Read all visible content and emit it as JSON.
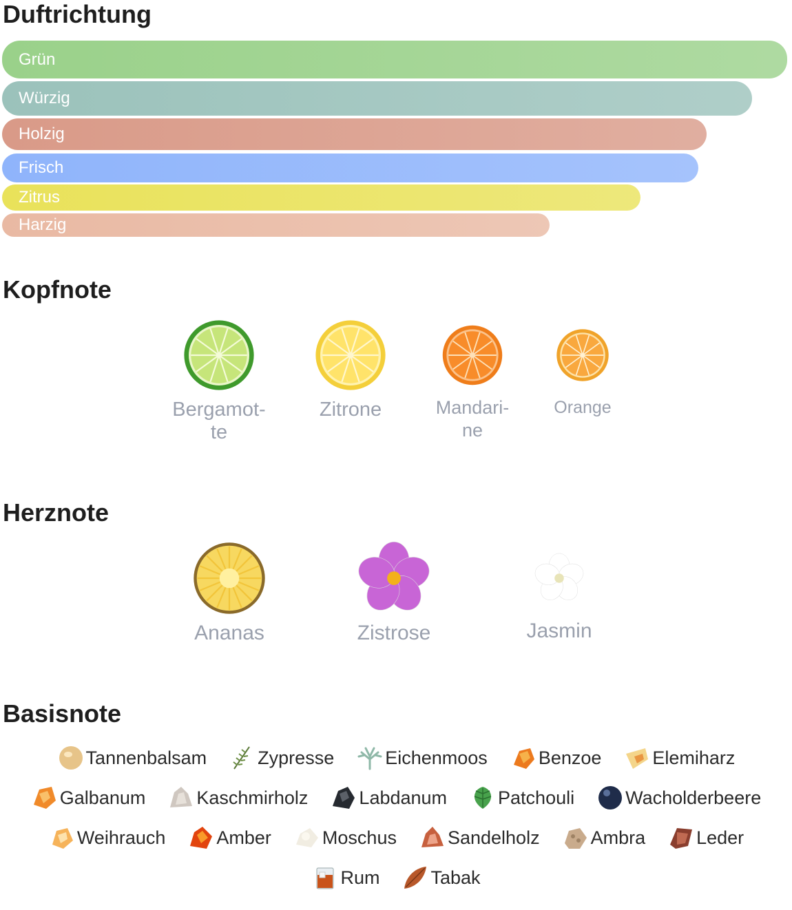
{
  "sections": {
    "duftrichtung": "Duftrichtung",
    "kopfnote": "Kopfnote",
    "herznote": "Herznote",
    "basisnote": "Basisnote"
  },
  "accords": [
    {
      "label": "Grün",
      "strength": 1.0,
      "color": "#9ad18a"
    },
    {
      "label": "Würzig",
      "strength": 0.955,
      "color": "#9bc2bb"
    },
    {
      "label": "Holzig",
      "strength": 0.897,
      "color": "#d99a88"
    },
    {
      "label": "Frisch",
      "strength": 0.887,
      "color": "#8fb4fb"
    },
    {
      "label": "Zitrus",
      "strength": 0.813,
      "color": "#e9e25a"
    },
    {
      "label": "Harzig",
      "strength": 0.697,
      "color": "#e9b9a3"
    }
  ],
  "kopfnote": [
    {
      "label": "Bergamot-\nte",
      "icon": "bergamot-icon"
    },
    {
      "label": "Zitrone",
      "icon": "lemon-icon"
    },
    {
      "label": "Mandari-\nne",
      "icon": "mandarin-icon"
    },
    {
      "label": "Orange",
      "icon": "orange-icon"
    }
  ],
  "herznote": [
    {
      "label": "Ananas",
      "icon": "pineapple-icon"
    },
    {
      "label": "Zistrose",
      "icon": "rockrose-icon"
    },
    {
      "label": "Jasmin",
      "icon": "jasmine-icon"
    }
  ],
  "basisnote": [
    [
      {
        "label": "Tannenbalsam",
        "icon": "fir-balsam-icon"
      },
      {
        "label": "Zypresse",
        "icon": "cypress-icon"
      },
      {
        "label": "Eichenmoos",
        "icon": "oakmoss-icon"
      },
      {
        "label": "Benzoe",
        "icon": "benzoin-icon"
      },
      {
        "label": "Elemiharz",
        "icon": "elemi-icon"
      }
    ],
    [
      {
        "label": "Galbanum",
        "icon": "galbanum-icon"
      },
      {
        "label": "Kaschmirholz",
        "icon": "cashmere-wood-icon"
      },
      {
        "label": "Labdanum",
        "icon": "labdanum-icon"
      },
      {
        "label": "Patchouli",
        "icon": "patchouli-icon"
      },
      {
        "label": "Wacholderbeere",
        "icon": "juniper-berry-icon"
      }
    ],
    [
      {
        "label": "Weihrauch",
        "icon": "frankincense-icon"
      },
      {
        "label": "Amber",
        "icon": "amber-icon"
      },
      {
        "label": "Moschus",
        "icon": "musk-icon"
      },
      {
        "label": "Sandelholz",
        "icon": "sandalwood-icon"
      },
      {
        "label": "Ambra",
        "icon": "ambergris-icon"
      },
      {
        "label": "Leder",
        "icon": "leather-icon"
      }
    ],
    [
      {
        "label": "Rum",
        "icon": "rum-icon"
      },
      {
        "label": "Tabak",
        "icon": "tobacco-icon"
      }
    ]
  ]
}
